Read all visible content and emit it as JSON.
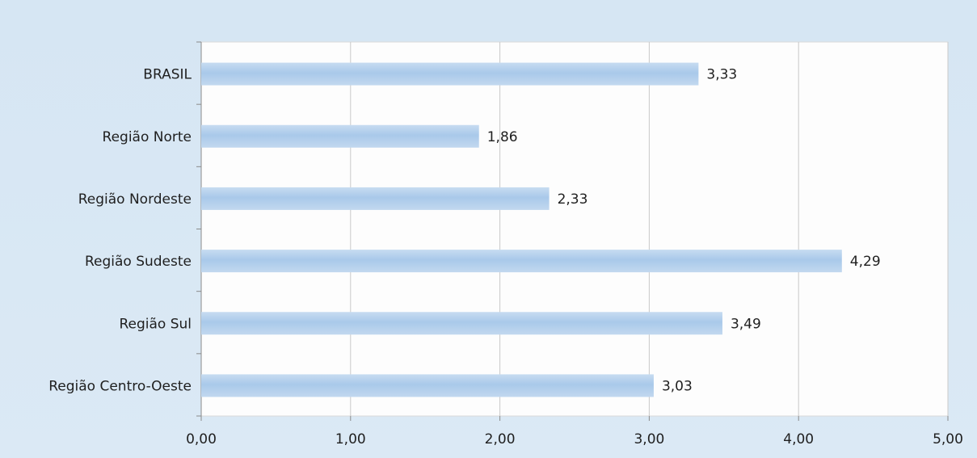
{
  "chart_data": {
    "type": "bar",
    "orientation": "horizontal",
    "categories": [
      "BRASIL",
      "Região Norte",
      "Região Nordeste",
      "Região Sudeste",
      "Região Sul",
      "Região Centro-Oeste"
    ],
    "values": [
      3.33,
      1.86,
      2.33,
      4.29,
      3.49,
      3.03
    ],
    "value_labels": [
      "3,33",
      "1,86",
      "2,33",
      "4,29",
      "3,49",
      "3,03"
    ],
    "xlim": [
      0,
      5
    ],
    "x_ticks": [
      "0,00",
      "1,00",
      "2,00",
      "3,00",
      "4,00",
      "5,00"
    ],
    "grid": "vertical",
    "bar_color": "#a9c9ea",
    "background_color": "#d6e6f3",
    "plot_color": "#fdfdfd"
  }
}
